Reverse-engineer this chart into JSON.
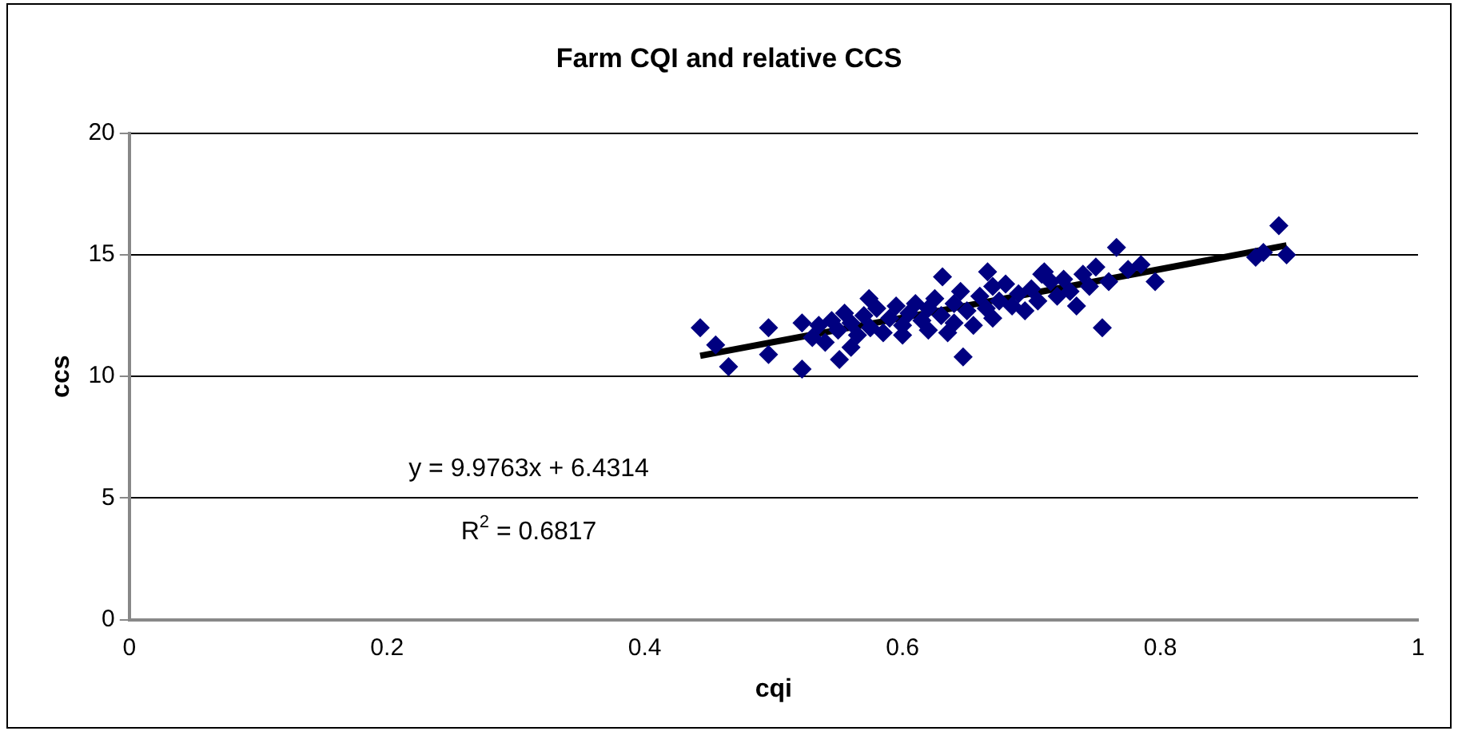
{
  "chart_data": {
    "type": "scatter",
    "title": "Farm CQI and relative CCS",
    "xlabel": "cqi",
    "ylabel": "ccs",
    "xlim": [
      0,
      1
    ],
    "xticks": [
      0,
      0.2,
      0.4,
      0.6,
      0.8,
      1
    ],
    "ylim": [
      0,
      20
    ],
    "yticks": [
      0,
      5,
      10,
      15,
      20
    ],
    "grid": "y",
    "legend": false,
    "annotations": [
      "y = 9.9763x + 6.4314",
      "R$^{2}$ = 0.6817"
    ],
    "series": [
      {
        "type": "scatter",
        "marker": "diamond",
        "color": "#000080",
        "x": [
          0.443,
          0.455,
          0.465,
          0.496,
          0.496,
          0.522,
          0.522,
          0.551,
          0.574,
          0.631,
          0.647,
          0.666,
          0.71,
          0.708,
          0.766,
          0.755,
          0.796,
          0.874,
          0.892,
          0.898,
          0.53,
          0.535,
          0.54,
          0.545,
          0.55,
          0.555,
          0.56,
          0.56,
          0.565,
          0.57,
          0.575,
          0.58,
          0.585,
          0.59,
          0.595,
          0.6,
          0.6,
          0.605,
          0.61,
          0.615,
          0.62,
          0.62,
          0.625,
          0.63,
          0.635,
          0.64,
          0.64,
          0.645,
          0.65,
          0.655,
          0.66,
          0.665,
          0.67,
          0.67,
          0.675,
          0.68,
          0.685,
          0.69,
          0.695,
          0.7,
          0.705,
          0.715,
          0.72,
          0.725,
          0.73,
          0.735,
          0.74,
          0.745,
          0.75,
          0.76,
          0.775,
          0.785,
          0.88
        ],
        "values": [
          12.0,
          11.3,
          10.4,
          12.0,
          10.9,
          10.3,
          12.2,
          10.7,
          13.2,
          14.1,
          10.8,
          14.3,
          14.3,
          14.2,
          15.3,
          12.0,
          13.9,
          14.9,
          16.2,
          15.0,
          11.6,
          12.1,
          11.4,
          12.3,
          11.9,
          12.6,
          11.2,
          12.2,
          11.7,
          12.5,
          12.0,
          12.8,
          11.8,
          12.4,
          12.9,
          12.1,
          11.7,
          12.6,
          13.0,
          12.3,
          11.9,
          12.8,
          13.2,
          12.5,
          11.8,
          13.0,
          12.2,
          13.5,
          12.7,
          12.1,
          13.3,
          12.8,
          13.7,
          12.4,
          13.1,
          13.8,
          12.9,
          13.4,
          12.7,
          13.6,
          13.1,
          13.9,
          13.3,
          14.0,
          13.5,
          12.9,
          14.2,
          13.7,
          14.5,
          13.9,
          14.4,
          14.6,
          15.1
        ]
      },
      {
        "type": "line",
        "marker": "none",
        "color": "#000000",
        "x": [
          0.443,
          0.898
        ],
        "values": [
          10.85,
          15.39
        ]
      }
    ]
  }
}
